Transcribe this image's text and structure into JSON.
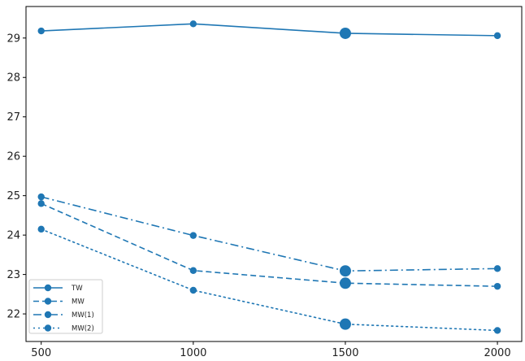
{
  "chart_data": {
    "type": "line",
    "x": [
      500,
      1000,
      1500,
      2000
    ],
    "xticks": [
      500,
      1000,
      1500,
      2000
    ],
    "yticks": [
      22,
      23,
      24,
      25,
      26,
      27,
      28,
      29
    ],
    "xlim": [
      450,
      2080
    ],
    "ylim": [
      21.3,
      29.8
    ],
    "color": "#1f77b4",
    "grid": false,
    "legend_position": "lower-left",
    "emphasized_x": 1500,
    "series": [
      {
        "name": "TW",
        "style": "solid",
        "values": [
          29.18,
          29.36,
          29.12,
          29.06
        ]
      },
      {
        "name": "MW",
        "style": "dashed",
        "values": [
          24.8,
          23.1,
          22.78,
          22.7
        ]
      },
      {
        "name": "MW(1)",
        "style": "dashdot",
        "values": [
          24.97,
          23.99,
          23.09,
          23.15
        ]
      },
      {
        "name": "MW(2)",
        "style": "dotted",
        "values": [
          24.15,
          22.6,
          21.74,
          21.58
        ]
      }
    ]
  }
}
